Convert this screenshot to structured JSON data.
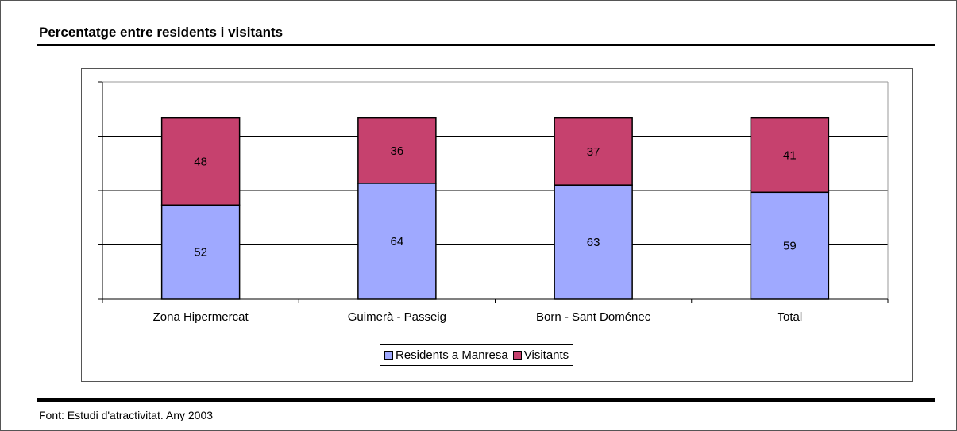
{
  "title": "Percentatge entre residents i visitants",
  "source": "Font: Estudi d'atractivitat. Any 2003",
  "chart_data": {
    "type": "bar",
    "stacked": true,
    "categories": [
      "Zona Hipermercat",
      "Guimerà - Passeig",
      "Born - Sant Doménec",
      "Total"
    ],
    "series": [
      {
        "name": "Residents a Manresa",
        "values": [
          52,
          64,
          63,
          59
        ],
        "color": "#9fa9ff"
      },
      {
        "name": "Visitants",
        "values": [
          48,
          36,
          37,
          41
        ],
        "color": "#c6416e"
      }
    ],
    "ylim": [
      0,
      120
    ],
    "grid": true,
    "legend": "bottom-center",
    "data_labels": true
  }
}
